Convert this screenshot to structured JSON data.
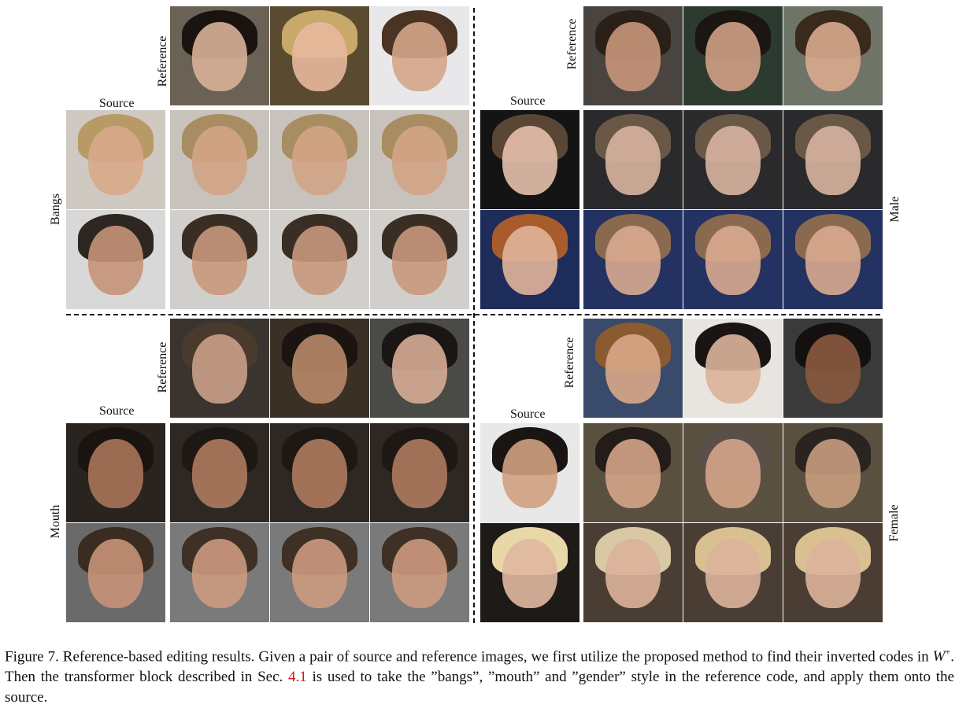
{
  "labels": {
    "source": "Source",
    "reference": "Reference",
    "bangs": "Bangs",
    "male": "Male",
    "mouth": "Mouth",
    "female": "Female"
  },
  "caption": {
    "part1": "Figure 7. Reference-based editing results. Given a pair of source and reference images, we first utilize the proposed method to find their inverted codes in ",
    "math": "W",
    "sup": "+",
    "part2": ". Then the transformer block described in Sec. ",
    "ref": "4.1",
    "part3": " is used to take the ”bangs”, ”mouth” and ”gender” style in the reference code, and apply them onto the source."
  },
  "colors": {
    "bg": "#ffffff",
    "text": "#111111",
    "ref_link": "#d01818"
  }
}
